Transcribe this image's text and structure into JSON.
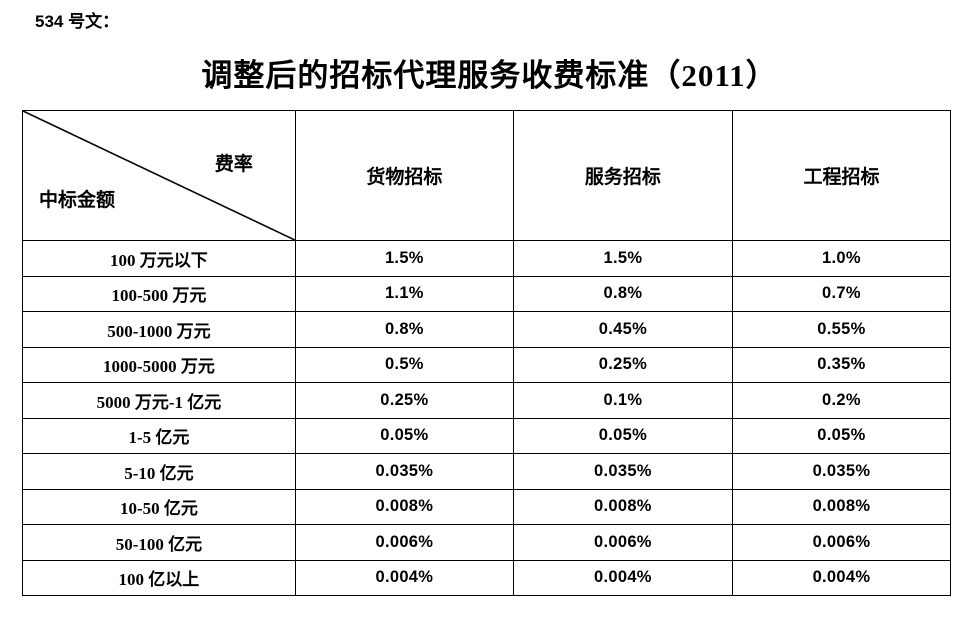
{
  "doc_label": "534 号文：",
  "title": "调整后的招标代理服务收费标准（2011）",
  "table": {
    "corner": {
      "top_right": "费率",
      "bottom_left": "中标金额"
    },
    "columns": [
      "货物招标",
      "服务招标",
      "工程招标"
    ],
    "rows": [
      {
        "label": "100 万元以下",
        "values": [
          "1.5%",
          "1.5%",
          "1.0%"
        ]
      },
      {
        "label": "100-500 万元",
        "values": [
          "1.1%",
          "0.8%",
          "0.7%"
        ]
      },
      {
        "label": "500-1000 万元",
        "values": [
          "0.8%",
          "0.45%",
          "0.55%"
        ]
      },
      {
        "label": "1000-5000 万元",
        "values": [
          "0.5%",
          "0.25%",
          "0.35%"
        ]
      },
      {
        "label": "5000 万元-1 亿元",
        "values": [
          "0.25%",
          "0.1%",
          "0.2%"
        ]
      },
      {
        "label": "1-5 亿元",
        "values": [
          "0.05%",
          "0.05%",
          "0.05%"
        ]
      },
      {
        "label": "5-10 亿元",
        "values": [
          "0.035%",
          "0.035%",
          "0.035%"
        ]
      },
      {
        "label": "10-50 亿元",
        "values": [
          "0.008%",
          "0.008%",
          "0.008%"
        ]
      },
      {
        "label": "50-100 亿元",
        "values": [
          "0.006%",
          "0.006%",
          "0.006%"
        ]
      },
      {
        "label": "100 亿以上",
        "values": [
          "0.004%",
          "0.004%",
          "0.004%"
        ]
      }
    ]
  },
  "colors": {
    "text": "#000000",
    "background": "#ffffff",
    "border": "#000000"
  }
}
